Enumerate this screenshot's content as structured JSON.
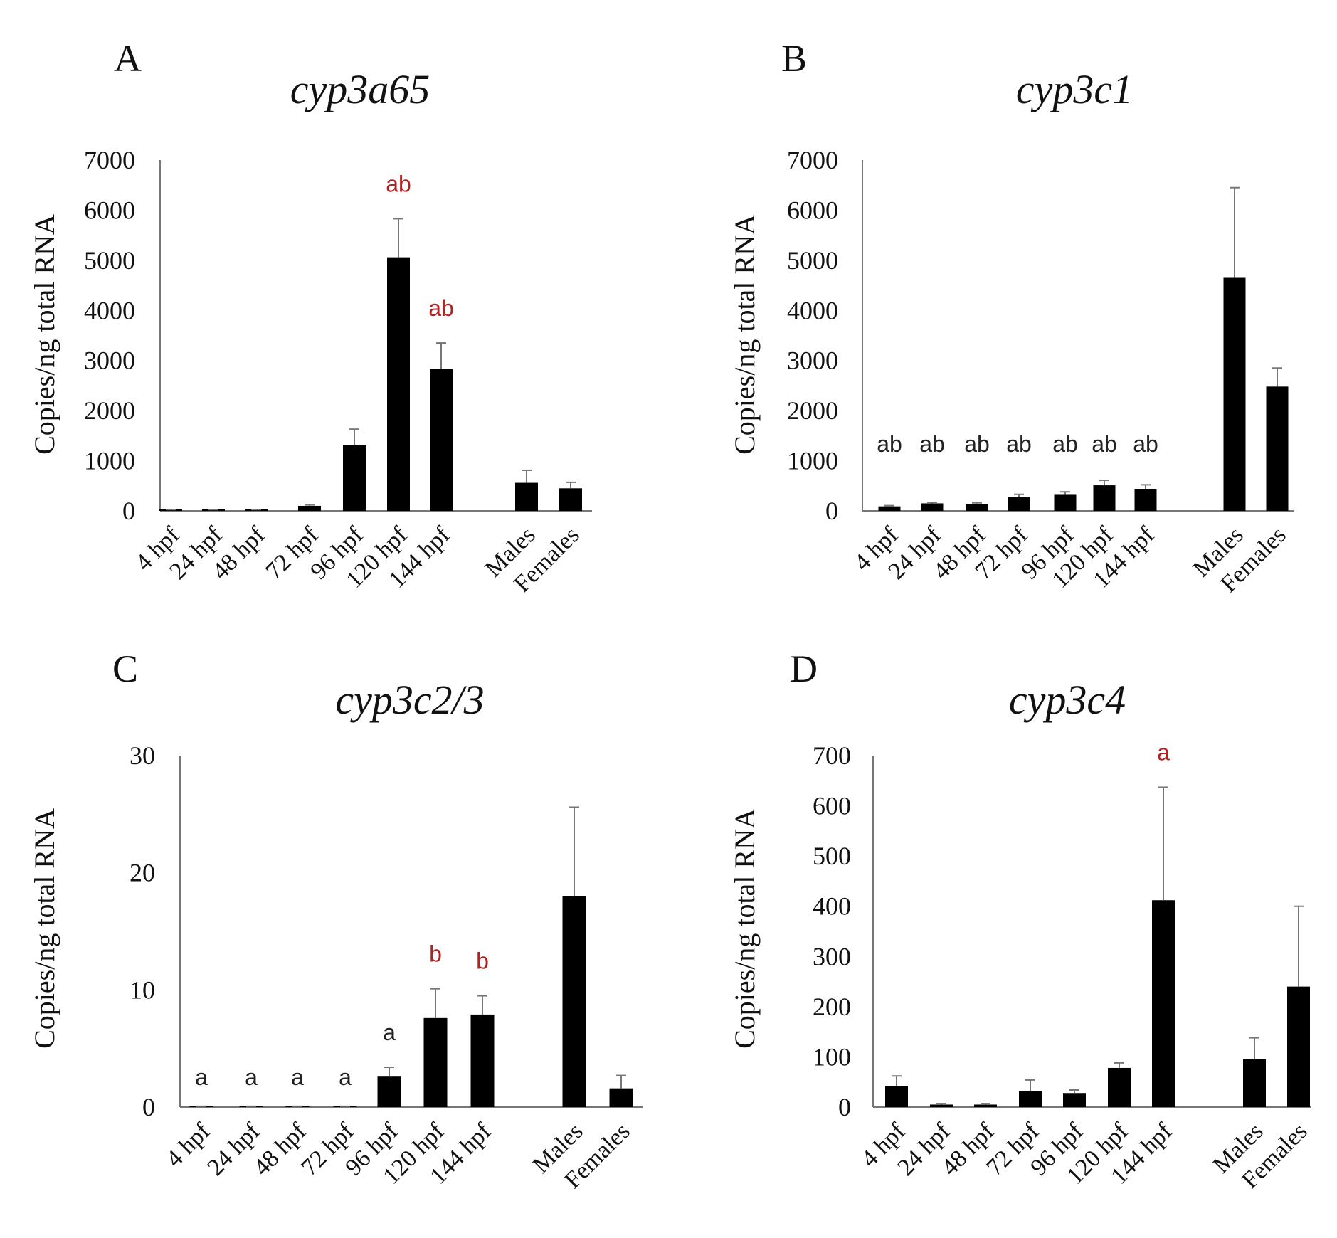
{
  "chart_data": [
    {
      "type": "bar",
      "panel": "A",
      "title": "cyp3a65",
      "ylabel": "Copies/ng total RNA",
      "xlabel": "",
      "ylim": [
        0,
        7000
      ],
      "yticks": [
        "7000",
        "6000",
        "5000",
        "4000",
        "3000",
        "2000",
        "1000",
        "0"
      ],
      "categories": [
        "4 hpf",
        "24 hpf",
        "48 hpf",
        "72 hpf",
        "96 hpf",
        "120 hpf",
        "144 hpf",
        "Males",
        "Females"
      ],
      "values": [
        20,
        20,
        20,
        100,
        1320,
        5060,
        2830,
        560,
        450
      ],
      "errors": [
        5,
        5,
        5,
        20,
        310,
        770,
        520,
        250,
        120
      ],
      "annotations": [
        "",
        "",
        "",
        "",
        "",
        "ab",
        "ab",
        "",
        ""
      ],
      "annotation_colors": [
        "",
        "",
        "",
        "",
        "",
        "#b22222",
        "#b22222",
        "",
        ""
      ]
    },
    {
      "type": "bar",
      "panel": "B",
      "title": "cyp3c1",
      "ylabel": "Copies/ng total RNA",
      "xlabel": "",
      "ylim": [
        0,
        7000
      ],
      "yticks": [
        "7000",
        "6000",
        "5000",
        "4000",
        "3000",
        "2000",
        "1000",
        "0"
      ],
      "categories": [
        "4 hpf",
        "24 hpf",
        "48 hpf",
        "72 hpf",
        "96 hpf",
        "120 hpf",
        "144 hpf",
        "Males",
        "Females"
      ],
      "values": [
        90,
        150,
        140,
        270,
        320,
        510,
        440,
        4650,
        2480
      ],
      "errors": [
        15,
        20,
        20,
        60,
        60,
        100,
        80,
        1800,
        370
      ],
      "annotations": [
        "ab",
        "ab",
        "ab",
        "ab",
        "ab",
        "ab",
        "ab",
        "",
        ""
      ],
      "annotation_colors": [
        "#222222",
        "#222222",
        "#222222",
        "#222222",
        "#222222",
        "#222222",
        "#222222",
        "",
        ""
      ]
    },
    {
      "type": "bar",
      "panel": "C",
      "title": "cyp3c2/3",
      "ylabel": "Copies/ng total RNA",
      "xlabel": "",
      "ylim": [
        0,
        30
      ],
      "yticks": [
        "30",
        "20",
        "10",
        "0"
      ],
      "categories": [
        "4 hpf",
        "24 hpf",
        "48 hpf",
        "72 hpf",
        "96 hpf",
        "120 hpf",
        "144 hpf",
        "Males",
        "Females"
      ],
      "values": [
        0.05,
        0.05,
        0.05,
        0.05,
        2.6,
        7.6,
        7.9,
        18.0,
        1.6
      ],
      "errors": [
        0.02,
        0.02,
        0.02,
        0.02,
        0.8,
        2.5,
        1.6,
        7.6,
        1.1
      ],
      "annotations": [
        "a",
        "a",
        "a",
        "a",
        "a",
        "b",
        "b",
        "",
        ""
      ],
      "annotation_colors": [
        "#222222",
        "#222222",
        "#222222",
        "#222222",
        "#222222",
        "#b22222",
        "#b22222",
        "",
        ""
      ]
    },
    {
      "type": "bar",
      "panel": "D",
      "title": "cyp3c4",
      "ylabel": "Copies/ng total RNA",
      "xlabel": "",
      "ylim": [
        0,
        700
      ],
      "yticks": [
        "700",
        "600",
        "500",
        "400",
        "300",
        "200",
        "100",
        "0"
      ],
      "categories": [
        "4 hpf",
        "24 hpf",
        "48 hpf",
        "72 hpf",
        "96 hpf",
        "120 hpf",
        "144 hpf",
        "Males",
        "Females"
      ],
      "values": [
        42,
        5,
        5,
        32,
        28,
        78,
        412,
        95,
        240
      ],
      "errors": [
        20,
        2,
        2,
        22,
        6,
        10,
        225,
        43,
        160
      ],
      "annotations": [
        "",
        "",
        "",
        "",
        "",
        "",
        "a",
        "",
        ""
      ],
      "annotation_colors": [
        "",
        "",
        "",
        "",
        "",
        "",
        "#b22222",
        "",
        ""
      ]
    }
  ]
}
